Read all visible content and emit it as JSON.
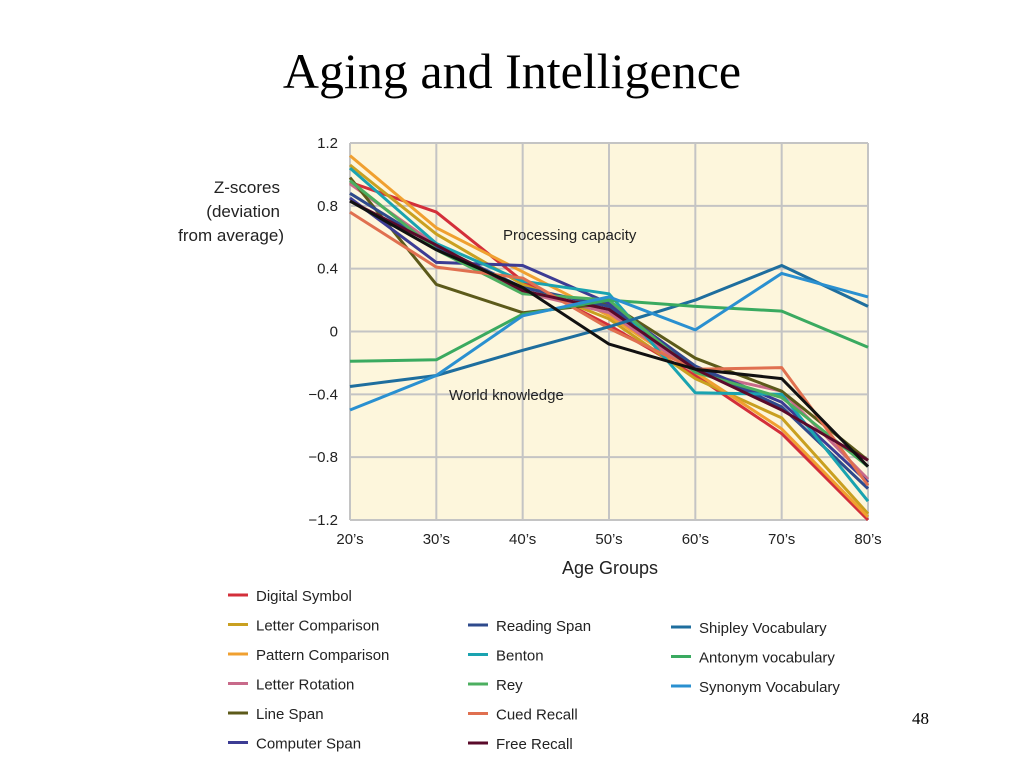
{
  "slide": {
    "title": "Aging and Intelligence",
    "number": "48"
  },
  "chart_data": {
    "type": "line",
    "title": "",
    "xlabel": "Age Groups",
    "ylabel": [
      "Z-scores",
      "(deviation",
      "from average)"
    ],
    "categories": [
      "20’s",
      "30’s",
      "40’s",
      "50’s",
      "60’s",
      "70’s",
      "80’s"
    ],
    "ylim": [
      -1.2,
      1.2
    ],
    "yticks": [
      1.2,
      0.8,
      0.4,
      0,
      -0.4,
      -0.8,
      -1.2
    ],
    "ytick_labels": [
      "1.2",
      "0.8",
      "0.4",
      "0",
      "−0.4",
      "−0.8",
      "−1.2"
    ],
    "grid": true,
    "plot_background": "#fdf6dc",
    "annotations": [
      "Processing capacity",
      "World knowledge"
    ],
    "legend_position": "bottom",
    "series": [
      {
        "name": "Digital Symbol",
        "color": "#d32f3a",
        "values": [
          0.95,
          0.76,
          0.32,
          0.04,
          -0.28,
          -0.65,
          -1.2
        ]
      },
      {
        "name": "Letter Comparison",
        "color": "#c9a020",
        "values": [
          1.06,
          0.62,
          0.3,
          0.08,
          -0.3,
          -0.55,
          -1.16
        ]
      },
      {
        "name": "Pattern Comparison",
        "color": "#f0a030",
        "values": [
          1.12,
          0.66,
          0.38,
          0.1,
          -0.26,
          -0.62,
          -1.18
        ]
      },
      {
        "name": "Letter Rotation",
        "color": "#c86a8a",
        "values": [
          0.94,
          0.55,
          0.25,
          0.12,
          -0.26,
          -0.38,
          -0.94
        ]
      },
      {
        "name": "Line Span",
        "color": "#5c5a1a",
        "values": [
          0.98,
          0.3,
          0.12,
          0.18,
          -0.17,
          -0.38,
          -0.82
        ]
      },
      {
        "name": "Computer Span",
        "color": "#3c3c94",
        "values": [
          0.85,
          0.44,
          0.42,
          0.18,
          -0.22,
          -0.45,
          -0.96
        ]
      },
      {
        "name": "Reading Span",
        "color": "#2e4a8c",
        "values": [
          0.88,
          0.54,
          0.28,
          0.16,
          -0.22,
          -0.48,
          -1.0
        ]
      },
      {
        "name": "Benton",
        "color": "#1aa3b0",
        "values": [
          1.04,
          0.56,
          0.32,
          0.24,
          -0.39,
          -0.4,
          -1.08
        ]
      },
      {
        "name": "Rey",
        "color": "#4caf60",
        "values": [
          0.96,
          0.52,
          0.24,
          0.2,
          -0.26,
          -0.42,
          -0.86
        ]
      },
      {
        "name": "Cued Recall",
        "color": "#e07050",
        "values": [
          0.76,
          0.41,
          0.34,
          0.02,
          -0.24,
          -0.23,
          -0.98
        ]
      },
      {
        "name": "Free Recall",
        "color": "#5a0a2a",
        "values": [
          0.83,
          0.55,
          0.26,
          0.14,
          -0.24,
          -0.5,
          -0.82
        ]
      },
      {
        "name": "Shipley Vocabulary",
        "color": "#1e6e9e",
        "values": [
          -0.35,
          -0.28,
          -0.12,
          0.03,
          0.2,
          0.42,
          0.16
        ]
      },
      {
        "name": "Antonym vocabulary",
        "color": "#3aaa60",
        "values": [
          -0.19,
          -0.18,
          0.11,
          0.2,
          0.16,
          0.13,
          -0.1
        ]
      },
      {
        "name": "Synonym Vocabulary",
        "color": "#2a90d0",
        "values": [
          -0.5,
          -0.28,
          0.1,
          0.22,
          0.01,
          0.37,
          0.22
        ]
      },
      {
        "name": "",
        "color": "#111111",
        "values": [
          0.83,
          0.52,
          0.28,
          -0.08,
          -0.24,
          -0.3,
          -0.86
        ]
      }
    ]
  }
}
